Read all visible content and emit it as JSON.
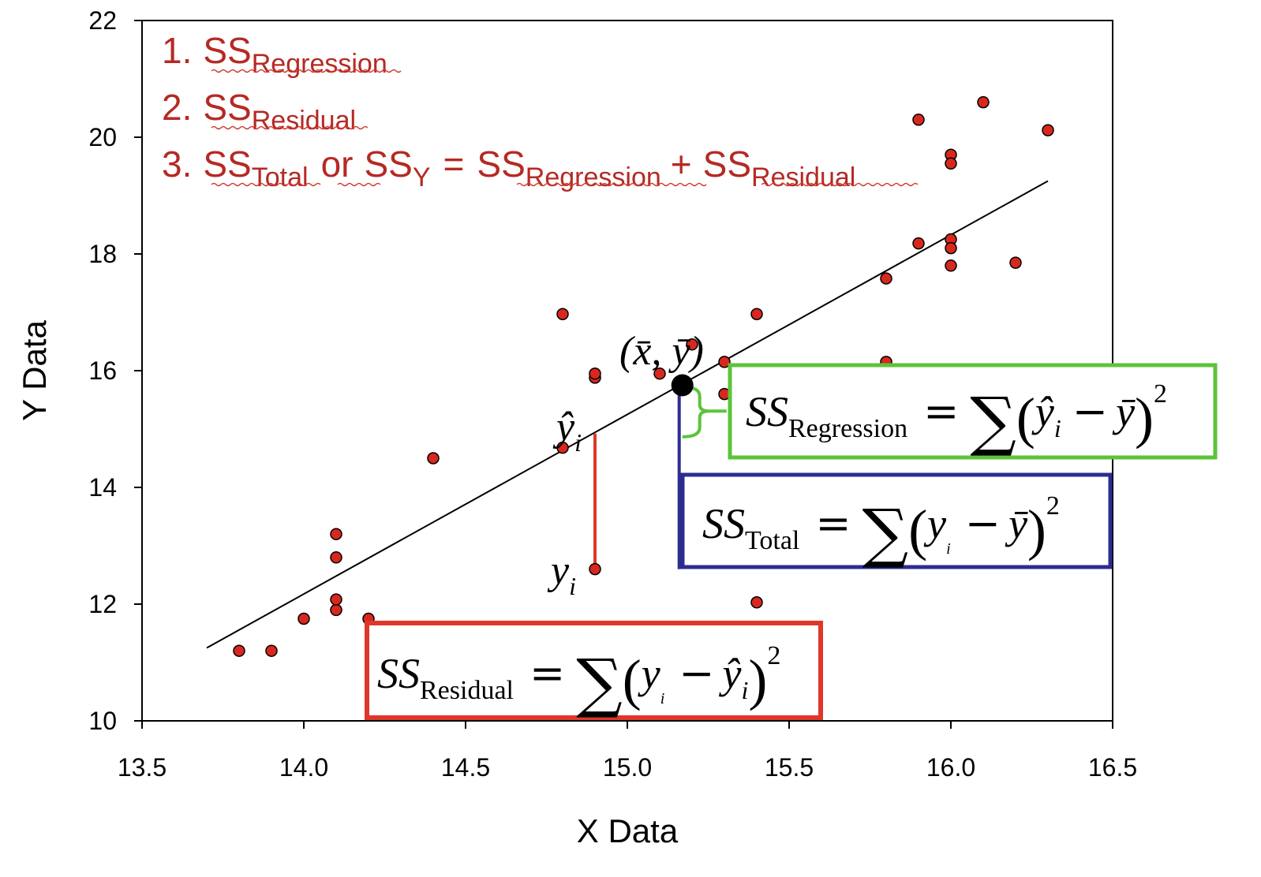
{
  "chart_data": {
    "type": "scatter",
    "xlabel": "X Data",
    "ylabel": "Y Data",
    "xlim": [
      13.5,
      16.5
    ],
    "ylim": [
      10,
      22
    ],
    "x_ticks": [
      "13.5",
      "14.0",
      "14.5",
      "15.0",
      "15.5",
      "16.0",
      "16.5"
    ],
    "y_ticks": [
      "10",
      "12",
      "14",
      "16",
      "18",
      "20",
      "22"
    ],
    "grid": false,
    "points": [
      {
        "x": 13.8,
        "y": 11.2
      },
      {
        "x": 13.9,
        "y": 11.2
      },
      {
        "x": 14.0,
        "y": 11.75
      },
      {
        "x": 14.1,
        "y": 11.9
      },
      {
        "x": 14.1,
        "y": 12.08
      },
      {
        "x": 14.1,
        "y": 12.8
      },
      {
        "x": 14.1,
        "y": 13.2
      },
      {
        "x": 14.2,
        "y": 11.75
      },
      {
        "x": 14.4,
        "y": 14.5
      },
      {
        "x": 14.8,
        "y": 16.97
      },
      {
        "x": 14.8,
        "y": 14.68
      },
      {
        "x": 14.9,
        "y": 15.88
      },
      {
        "x": 14.9,
        "y": 15.95
      },
      {
        "x": 14.9,
        "y": 12.6
      },
      {
        "x": 15.1,
        "y": 15.95
      },
      {
        "x": 15.2,
        "y": 16.45
      },
      {
        "x": 15.3,
        "y": 16.15
      },
      {
        "x": 15.3,
        "y": 15.6
      },
      {
        "x": 15.4,
        "y": 16.97
      },
      {
        "x": 15.4,
        "y": 12.03
      },
      {
        "x": 15.8,
        "y": 17.58
      },
      {
        "x": 15.8,
        "y": 16.15
      },
      {
        "x": 15.9,
        "y": 18.18
      },
      {
        "x": 15.9,
        "y": 20.3
      },
      {
        "x": 16.0,
        "y": 19.7
      },
      {
        "x": 16.0,
        "y": 19.55
      },
      {
        "x": 16.0,
        "y": 18.25
      },
      {
        "x": 16.0,
        "y": 18.1
      },
      {
        "x": 16.0,
        "y": 17.8
      },
      {
        "x": 16.1,
        "y": 20.6
      },
      {
        "x": 16.2,
        "y": 17.85
      },
      {
        "x": 16.3,
        "y": 20.12
      }
    ],
    "regression_line": {
      "x": [
        13.7,
        16.3
      ],
      "y": [
        11.25,
        19.25
      ]
    },
    "mean_point": {
      "x": 15.17,
      "y": 15.75
    },
    "highlight_point": {
      "x": 14.9,
      "y": 12.6
    },
    "highlight_fit": {
      "x": 14.9,
      "y": 14.92
    },
    "colors": {
      "point": "#d8281e",
      "regression_box": "#5cc43a",
      "total_box": "#2c2c90",
      "residual_box": "#e0372a",
      "list_text": "#b52a24"
    }
  },
  "list": {
    "n1": "1.",
    "n2": "2.",
    "n3": "3.",
    "ss": "SS",
    "regression": "Regression",
    "residual": "Residual",
    "total": "Total",
    "or": "or",
    "y": "Y",
    "equals": "=",
    "plus": "+"
  },
  "labels": {
    "mean_point": "(x̄, ȳ)",
    "yhat_i": "ŷ",
    "y_i": "y",
    "sub_i": "i"
  },
  "formulas": {
    "ss": "SS",
    "regression": "Regression",
    "total": "Total",
    "residual": "Residual",
    "equals": "=",
    "sum": "∑",
    "lparen": "(",
    "rparen": ")",
    "minus": "−",
    "yhat": "ŷ",
    "ybar": "ȳ",
    "y": "y",
    "i": "i",
    "square": "2"
  }
}
